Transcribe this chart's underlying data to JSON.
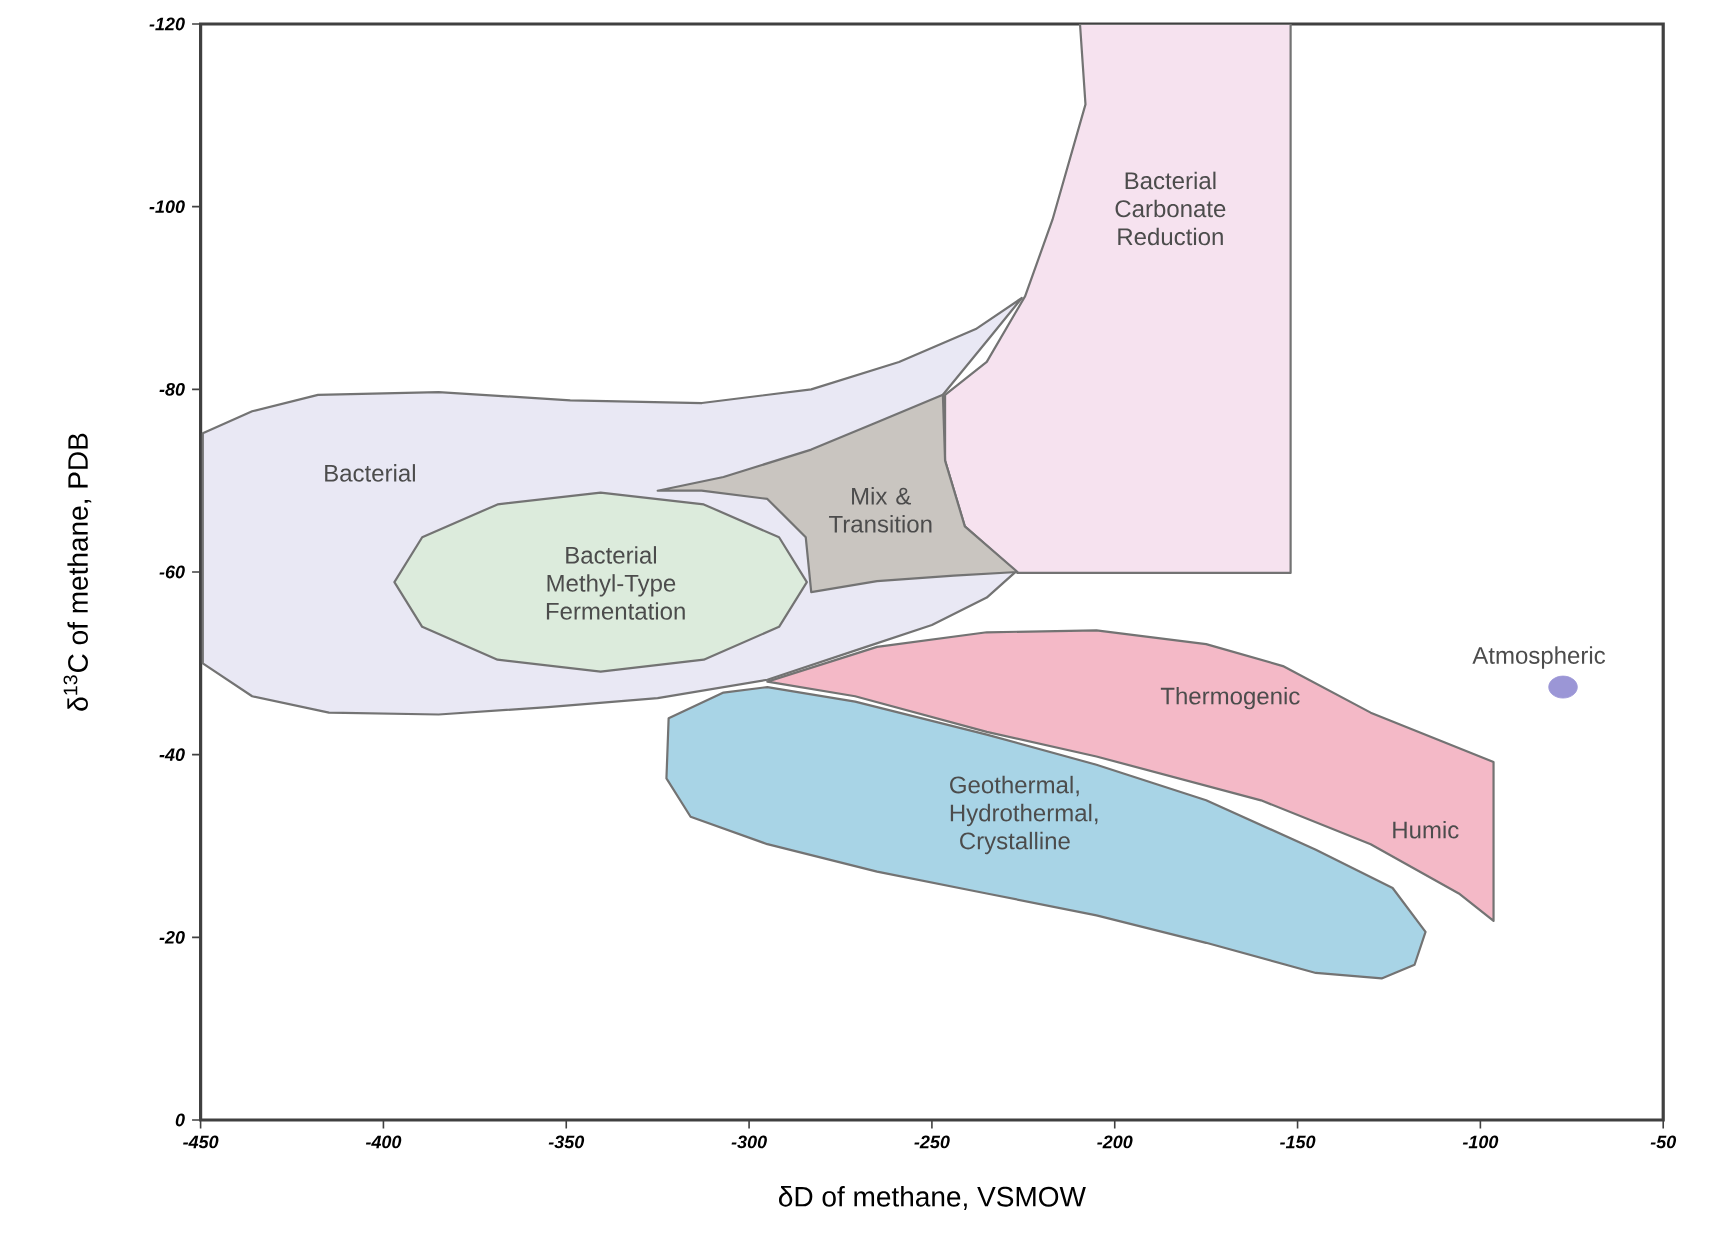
{
  "chart_data": {
    "type": "area",
    "xlabel": "δD of methane, VSMOW",
    "ylabel": "δ$^{13}$C of methane, PDB",
    "xlim": [
      -450,
      -50
    ],
    "xticks": [
      -450,
      -400,
      -350,
      -300,
      -250,
      -200,
      -150,
      -100,
      -50
    ],
    "ylim": [
      0,
      -120
    ],
    "yticks": [
      0,
      -20,
      -40,
      -60,
      -80,
      -100,
      -120
    ],
    "series": [
      {
        "name": "Bacterial",
        "color": "#e9e8f4",
        "x": [
          -449.4,
          -435.9,
          -417.9,
          -384.9,
          -348.9,
          -312.9,
          -283.0,
          -259.0,
          -238.0,
          -225.4,
          -233.5,
          -247.0,
          -226.6,
          -235.0,
          -250.0,
          -268.0,
          -295.0,
          -325.0,
          -355.0,
          -384.9,
          -414.9,
          -435.9,
          -449.4
        ],
        "values": [
          -75.2,
          -77.6,
          -79.4,
          -79.7,
          -78.8,
          -78.5,
          -80.0,
          -83.0,
          -86.6,
          -90.0,
          -86.0,
          -79.4,
          -60.2,
          -57.2,
          -54.2,
          -51.8,
          -48.2,
          -46.2,
          -45.2,
          -44.4,
          -44.6,
          -46.4,
          -50.0
        ]
      },
      {
        "name": "Bacterial Carbonate Reduction",
        "color": "#f6e2ef",
        "x": [
          -246.4,
          -235.0,
          -224.5,
          -217.0,
          -211.0,
          -208.0,
          -209.5,
          -151.9,
          -151.9,
          -226.6,
          -241.0,
          -246.4
        ],
        "values": [
          -79.4,
          -83.0,
          -90.2,
          -98.6,
          -107.0,
          -111.2,
          -120,
          -120,
          -59.9,
          -59.9,
          -65.0,
          -72.2
        ]
      },
      {
        "name": "Mix & Transition",
        "color": "#c9c5c0",
        "x": [
          -325.0,
          -307.0,
          -283.0,
          -265.0,
          -247.0,
          -246.4,
          -241.0,
          -226.6,
          -244.0,
          -265.0,
          -283.0,
          -284.5,
          -295.0,
          -313.0
        ],
        "values": [
          -68.9,
          -70.4,
          -73.4,
          -76.4,
          -79.4,
          -72.2,
          -65.0,
          -60.0,
          -59.6,
          -59.0,
          -57.8,
          -63.8,
          -68.0,
          -68.9
        ]
      },
      {
        "name": "Bacterial Methyl-Type Fermentation",
        "color": "#dcebdc",
        "x": [
          -284.2,
          -291.8,
          -312.4,
          -340.6,
          -368.8,
          -389.4,
          -397.0,
          -389.4,
          -368.8,
          -340.6,
          -312.4,
          -291.8
        ],
        "values": [
          -58.9,
          -63.8,
          -67.4,
          -68.7,
          -67.4,
          -63.8,
          -58.9,
          -54.0,
          -50.4,
          -49.1,
          -50.4,
          -54.0
        ]
      },
      {
        "name": "Thermogenic",
        "color": "#f4b9c7",
        "x": [
          -295.0,
          -265.0,
          -235.0,
          -205.0,
          -175.0,
          -154.0,
          -130.0,
          -96.4,
          -96.4,
          -105.9,
          -130.0,
          -160.0,
          -205.0,
          -235.0,
          -271.0
        ],
        "values": [
          -48.0,
          -51.8,
          -53.4,
          -53.6,
          -52.1,
          -49.7,
          -44.6,
          -39.2,
          -21.8,
          -24.8,
          -30.2,
          -35.0,
          -39.8,
          -42.5,
          -46.4
        ]
      },
      {
        "name": "Geothermal, Hydrothermal, Crystalline",
        "color": "#a8d4e6",
        "x": [
          -322.0,
          -307.0,
          -295.0,
          -271.0,
          -235.0,
          -205.0,
          -175.0,
          -145.0,
          -124.0,
          -115.0,
          -118.0,
          -127.0,
          -145.0,
          -175.0,
          -205.0,
          -235.0,
          -265.0,
          -295.0,
          -316.0,
          -322.6
        ],
        "values": [
          -44.0,
          -46.8,
          -47.4,
          -45.8,
          -42.2,
          -38.9,
          -35.0,
          -29.6,
          -25.4,
          -20.6,
          -17.0,
          -15.5,
          -16.1,
          -19.4,
          -22.4,
          -24.8,
          -27.2,
          -30.2,
          -33.2,
          -37.4
        ]
      },
      {
        "name": "Atmospheric",
        "type": "scatter",
        "marker": "circle",
        "color": "#9b96d6",
        "x": [
          -77.4
        ],
        "values": [
          -47.4
        ]
      }
    ],
    "annotations": [
      "Humic"
    ]
  }
}
